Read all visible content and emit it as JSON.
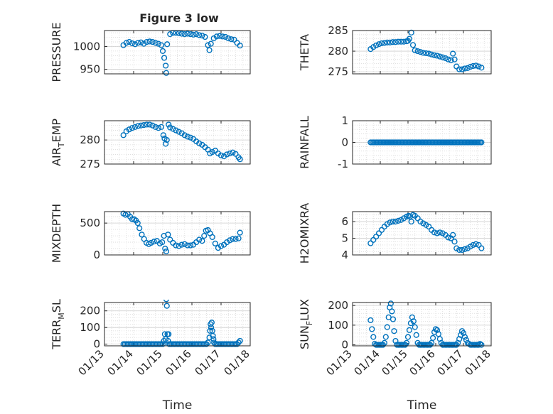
{
  "figure_title": "Figure 3 low",
  "marker_color": "#0072BD",
  "chart_data": [
    {
      "type": "scatter",
      "ylabel": "PRESSURE",
      "ylim": [
        940,
        1035
      ],
      "yticks": [
        950,
        1000
      ],
      "grid": true,
      "x": [
        13.65,
        13.75,
        13.85,
        13.95,
        14.05,
        14.15,
        14.25,
        14.35,
        14.45,
        14.55,
        14.65,
        14.75,
        14.85,
        14.95,
        15.0,
        15.05,
        15.1,
        15.12,
        15.15,
        15.25,
        15.35,
        15.45,
        15.55,
        15.65,
        15.75,
        15.85,
        15.95,
        16.05,
        16.15,
        16.25,
        16.35,
        16.45,
        16.55,
        16.6,
        16.65,
        16.75,
        16.85,
        16.95,
        17.05,
        17.15,
        17.25,
        17.35,
        17.45,
        17.55,
        17.65
      ],
      "y": [
        1003,
        1008,
        1010,
        1007,
        1005,
        1008,
        1009,
        1006,
        1010,
        1011,
        1010,
        1008,
        1006,
        1003,
        990,
        975,
        958,
        942,
        1005,
        1027,
        1030,
        1030,
        1029,
        1028,
        1027,
        1028,
        1027,
        1026,
        1027,
        1025,
        1024,
        1021,
        1003,
        992,
        1006,
        1018,
        1022,
        1023,
        1022,
        1021,
        1018,
        1016,
        1015,
        1008,
        1002
      ]
    },
    {
      "type": "scatter",
      "ylabel": "THETA",
      "ylim": [
        274.5,
        285
      ],
      "yticks": [
        275,
        280,
        285
      ],
      "grid": true,
      "x": [
        13.65,
        13.75,
        13.85,
        13.95,
        14.05,
        14.15,
        14.25,
        14.35,
        14.45,
        14.55,
        14.65,
        14.75,
        14.85,
        14.95,
        15.0,
        15.05,
        15.12,
        15.18,
        15.25,
        15.35,
        15.45,
        15.55,
        15.65,
        15.75,
        15.85,
        15.95,
        16.05,
        16.15,
        16.25,
        16.35,
        16.45,
        16.55,
        16.62,
        16.68,
        16.75,
        16.85,
        16.95,
        17.05,
        17.15,
        17.25,
        17.35,
        17.45,
        17.55,
        17.65
      ],
      "y": [
        280.5,
        281,
        281.4,
        281.7,
        281.9,
        282,
        282.1,
        282.1,
        282.2,
        282.2,
        282.3,
        282.3,
        282.3,
        282.4,
        282.5,
        283,
        284.5,
        281.5,
        280.2,
        280,
        279.8,
        279.6,
        279.5,
        279.4,
        279.2,
        279,
        278.9,
        278.7,
        278.5,
        278.3,
        278,
        277.8,
        279.4,
        278,
        276.3,
        275.6,
        275.6,
        275.8,
        275.9,
        276.2,
        276.4,
        276.5,
        276.3,
        276
      ]
    },
    {
      "type": "scatter",
      "ylabel": "AIR_TEMP",
      "ylabel_main": "AIR",
      "ylabel_sub": "T",
      "ylabel_rest": "EMP",
      "ylim": [
        275,
        284
      ],
      "yticks": [
        275,
        280
      ],
      "grid": true,
      "x": [
        13.65,
        13.75,
        13.85,
        13.95,
        14.05,
        14.15,
        14.25,
        14.35,
        14.45,
        14.55,
        14.65,
        14.75,
        14.85,
        14.95,
        15.02,
        15.06,
        15.1,
        15.14,
        15.2,
        15.25,
        15.35,
        15.45,
        15.55,
        15.65,
        15.75,
        15.85,
        15.95,
        16.05,
        16.15,
        16.25,
        16.35,
        16.45,
        16.55,
        16.62,
        16.7,
        16.8,
        16.9,
        17.0,
        17.1,
        17.2,
        17.3,
        17.4,
        17.5,
        17.6,
        17.65
      ],
      "y": [
        281,
        281.8,
        282.2,
        282.5,
        282.7,
        282.9,
        283,
        283.1,
        283.2,
        283.2,
        283,
        282.7,
        282.5,
        282.7,
        281,
        280.3,
        279.2,
        280,
        283.2,
        282.6,
        282.3,
        282,
        281.7,
        281.4,
        281,
        280.7,
        280.5,
        280.2,
        279.7,
        279.3,
        279,
        278.5,
        278,
        277.2,
        277.5,
        277.8,
        277.2,
        276.8,
        276.6,
        277,
        277.2,
        277.4,
        277.1,
        276.4,
        276
      ]
    },
    {
      "type": "scatter",
      "ylabel": "RAINFALL",
      "ylim": [
        -1,
        1
      ],
      "yticks": [
        -1,
        0,
        1
      ],
      "grid": true,
      "x_range": [
        13.65,
        17.65
      ],
      "constant_y": 0,
      "n_points": 80
    },
    {
      "type": "scatter",
      "ylabel": "MIXDEPTH",
      "ylim": [
        0,
        680
      ],
      "yticks": [
        0,
        500
      ],
      "grid": true,
      "x": [
        13.65,
        13.72,
        13.8,
        13.88,
        13.95,
        14.02,
        14.08,
        14.14,
        14.2,
        14.28,
        14.36,
        14.44,
        14.52,
        14.6,
        14.7,
        14.8,
        14.9,
        14.98,
        15.04,
        15.08,
        15.12,
        15.18,
        15.25,
        15.35,
        15.45,
        15.55,
        15.65,
        15.75,
        15.85,
        15.95,
        16.05,
        16.15,
        16.25,
        16.35,
        16.42,
        16.48,
        16.55,
        16.62,
        16.7,
        16.8,
        16.9,
        17.0,
        17.1,
        17.2,
        17.3,
        17.4,
        17.5,
        17.6,
        17.65
      ],
      "y": [
        650,
        630,
        640,
        600,
        560,
        560,
        540,
        500,
        420,
        320,
        250,
        190,
        170,
        190,
        210,
        220,
        180,
        200,
        300,
        100,
        55,
        320,
        240,
        190,
        150,
        140,
        160,
        170,
        150,
        150,
        160,
        200,
        240,
        220,
        300,
        380,
        390,
        340,
        280,
        180,
        110,
        140,
        160,
        200,
        230,
        250,
        250,
        260,
        350
      ]
    },
    {
      "type": "scatter",
      "ylabel": "H2OMIXRA",
      "ylim": [
        4,
        6.6
      ],
      "yticks": [
        4,
        5,
        6
      ],
      "grid": true,
      "x": [
        13.65,
        13.75,
        13.85,
        13.95,
        14.05,
        14.15,
        14.25,
        14.35,
        14.45,
        14.55,
        14.65,
        14.75,
        14.85,
        14.95,
        15.02,
        15.07,
        15.12,
        15.18,
        15.25,
        15.35,
        15.45,
        15.55,
        15.65,
        15.75,
        15.85,
        15.95,
        16.05,
        16.15,
        16.25,
        16.35,
        16.45,
        16.55,
        16.62,
        16.68,
        16.75,
        16.85,
        16.95,
        17.05,
        17.15,
        17.25,
        17.35,
        17.45,
        17.55,
        17.65
      ],
      "y": [
        4.7,
        4.9,
        5.1,
        5.3,
        5.5,
        5.7,
        5.85,
        5.95,
        6.0,
        6.0,
        6.05,
        6.1,
        6.2,
        6.3,
        6.35,
        6.3,
        6.0,
        6.4,
        6.35,
        6.2,
        6.0,
        5.9,
        5.8,
        5.7,
        5.5,
        5.35,
        5.3,
        5.35,
        5.3,
        5.2,
        5.05,
        5.0,
        5.2,
        4.8,
        4.4,
        4.3,
        4.3,
        4.35,
        4.4,
        4.5,
        4.6,
        4.65,
        4.6,
        4.4
      ]
    },
    {
      "type": "scatter",
      "ylabel": "TERR_MSL",
      "ylabel_main": "TERR",
      "ylabel_sub": "M",
      "ylabel_rest": "SL",
      "ylim": [
        -10,
        250
      ],
      "yticks": [
        0,
        100,
        200
      ],
      "xlabel": "Time",
      "xlim": [
        13,
        18
      ],
      "xticks": [
        "01/13",
        "01/14",
        "01/15",
        "01/16",
        "01/17",
        "01/18"
      ],
      "grid": true,
      "x": [
        13.65,
        13.7,
        13.75,
        13.8,
        13.85,
        13.9,
        13.95,
        14.0,
        14.05,
        14.1,
        14.15,
        14.2,
        14.25,
        14.3,
        14.35,
        14.4,
        14.45,
        14.5,
        14.55,
        14.6,
        14.65,
        14.7,
        14.75,
        14.8,
        14.85,
        14.9,
        14.95,
        15.0,
        15.04,
        15.07,
        15.1,
        15.12,
        15.14,
        15.16,
        15.18,
        15.2,
        15.22,
        15.25,
        15.3,
        15.35,
        15.4,
        15.45,
        15.5,
        15.55,
        15.6,
        15.65,
        15.7,
        15.75,
        15.8,
        15.85,
        15.9,
        15.95,
        16.0,
        16.05,
        16.1,
        16.15,
        16.2,
        16.25,
        16.3,
        16.35,
        16.4,
        16.45,
        16.5,
        16.55,
        16.6,
        16.62,
        16.64,
        16.66,
        16.68,
        16.7,
        16.72,
        16.74,
        16.76,
        16.8,
        16.85,
        16.9,
        16.95,
        17.0,
        17.05,
        17.1,
        17.15,
        17.2,
        17.25,
        17.3,
        17.35,
        17.4,
        17.45,
        17.5,
        17.55,
        17.6,
        17.65
      ],
      "y": [
        0,
        0,
        0,
        0,
        0,
        0,
        0,
        0,
        0,
        0,
        0,
        0,
        0,
        0,
        0,
        0,
        0,
        0,
        0,
        0,
        0,
        0,
        0,
        0,
        0,
        0,
        0,
        0,
        20,
        60,
        30,
        270,
        230,
        60,
        20,
        60,
        0,
        0,
        0,
        0,
        0,
        0,
        0,
        0,
        0,
        0,
        0,
        0,
        0,
        0,
        0,
        0,
        0,
        0,
        0,
        0,
        0,
        0,
        0,
        0,
        0,
        0,
        0,
        10,
        40,
        80,
        120,
        100,
        130,
        80,
        50,
        30,
        10,
        0,
        0,
        0,
        0,
        0,
        0,
        0,
        0,
        0,
        0,
        0,
        0,
        0,
        0,
        0,
        0,
        10,
        20
      ]
    },
    {
      "type": "scatter",
      "ylabel": "SUN_FLUX",
      "ylabel_main": "SUN",
      "ylabel_sub": "F",
      "ylabel_rest": "LUX",
      "ylim": [
        -5,
        215
      ],
      "yticks": [
        0,
        100,
        200
      ],
      "xlabel": "Time",
      "xlim": [
        13,
        18
      ],
      "xticks": [
        "01/13",
        "01/14",
        "01/15",
        "01/16",
        "01/17",
        "01/18"
      ],
      "grid": true,
      "x": [
        13.65,
        13.7,
        13.75,
        13.8,
        13.85,
        13.9,
        13.95,
        14.0,
        14.05,
        14.1,
        14.15,
        14.2,
        14.25,
        14.3,
        14.34,
        14.38,
        14.42,
        14.46,
        14.5,
        14.55,
        14.6,
        14.65,
        14.7,
        14.75,
        14.8,
        14.85,
        14.9,
        14.95,
        15.0,
        15.05,
        15.1,
        15.15,
        15.2,
        15.25,
        15.3,
        15.35,
        15.4,
        15.45,
        15.5,
        15.55,
        15.6,
        15.65,
        15.7,
        15.75,
        15.8,
        15.85,
        15.9,
        15.95,
        16.0,
        16.05,
        16.1,
        16.15,
        16.2,
        16.25,
        16.3,
        16.35,
        16.4,
        16.45,
        16.5,
        16.55,
        16.6,
        16.65,
        16.7,
        16.75,
        16.8,
        16.85,
        16.9,
        16.95,
        17.0,
        17.05,
        17.1,
        17.15,
        17.2,
        17.25,
        17.3,
        17.35,
        17.4,
        17.45,
        17.5,
        17.55,
        17.6,
        17.65
      ],
      "y": [
        125,
        80,
        40,
        5,
        0,
        0,
        0,
        0,
        0,
        0,
        10,
        40,
        90,
        140,
        190,
        210,
        170,
        130,
        70,
        20,
        0,
        0,
        0,
        0,
        0,
        0,
        0,
        10,
        40,
        75,
        110,
        140,
        120,
        90,
        50,
        10,
        0,
        0,
        0,
        0,
        0,
        0,
        0,
        0,
        0,
        10,
        35,
        65,
        80,
        75,
        55,
        30,
        10,
        0,
        0,
        0,
        0,
        0,
        0,
        0,
        0,
        0,
        0,
        0,
        10,
        30,
        50,
        70,
        60,
        40,
        25,
        10,
        5,
        0,
        0,
        0,
        0,
        0,
        0,
        0,
        5,
        0
      ]
    }
  ]
}
